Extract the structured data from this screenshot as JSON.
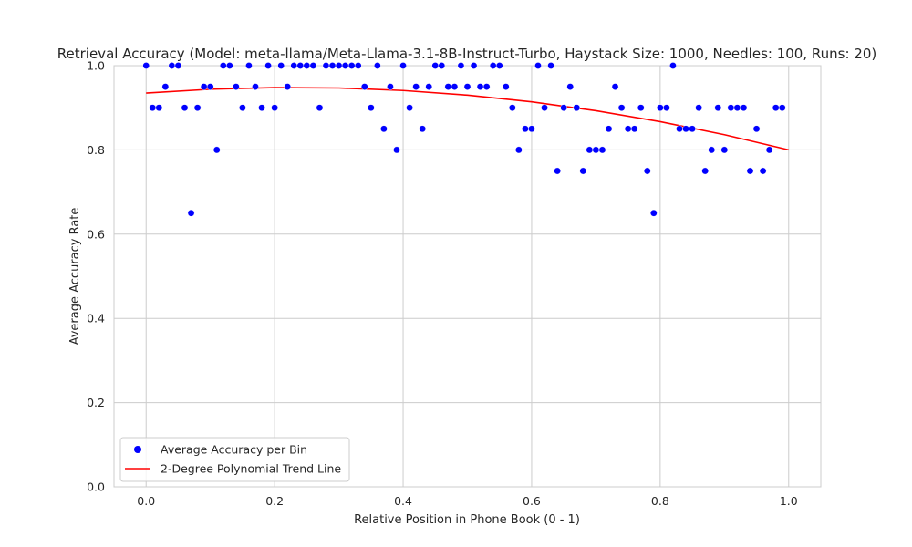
{
  "chart_data": {
    "type": "scatter",
    "title": "Retrieval Accuracy (Model: meta-llama/Meta-Llama-3.1-8B-Instruct-Turbo, Haystack Size: 1000, Needles: 100, Runs: 20)",
    "xlabel": "Relative Position in Phone Book (0 - 1)",
    "ylabel": "Average Accuracy Rate",
    "xlim": [
      -0.05,
      1.05
    ],
    "ylim": [
      0.0,
      1.0
    ],
    "xticks": [
      "0.0",
      "0.2",
      "0.4",
      "0.6",
      "0.8",
      "1.0"
    ],
    "yticks": [
      "0.0",
      "0.2",
      "0.4",
      "0.6",
      "0.8",
      "1.0"
    ],
    "grid": true,
    "legend_position": "lower-left",
    "series": [
      {
        "name": "Average Accuracy per Bin",
        "kind": "scatter",
        "color": "#0000ff",
        "x": [
          0.0,
          0.01,
          0.02,
          0.03,
          0.04,
          0.05,
          0.06,
          0.07,
          0.08,
          0.09,
          0.1,
          0.11,
          0.12,
          0.13,
          0.14,
          0.15,
          0.16,
          0.17,
          0.18,
          0.19,
          0.2,
          0.21,
          0.22,
          0.23,
          0.24,
          0.25,
          0.26,
          0.27,
          0.28,
          0.29,
          0.3,
          0.31,
          0.32,
          0.33,
          0.34,
          0.35,
          0.36,
          0.37,
          0.38,
          0.39,
          0.4,
          0.41,
          0.42,
          0.43,
          0.44,
          0.45,
          0.46,
          0.47,
          0.48,
          0.49,
          0.5,
          0.51,
          0.52,
          0.53,
          0.54,
          0.55,
          0.56,
          0.57,
          0.58,
          0.59,
          0.6,
          0.61,
          0.62,
          0.63,
          0.64,
          0.65,
          0.66,
          0.67,
          0.68,
          0.69,
          0.7,
          0.71,
          0.72,
          0.73,
          0.74,
          0.75,
          0.76,
          0.77,
          0.78,
          0.79,
          0.8,
          0.81,
          0.82,
          0.83,
          0.84,
          0.85,
          0.86,
          0.87,
          0.88,
          0.89,
          0.9,
          0.91,
          0.92,
          0.93,
          0.94,
          0.95,
          0.96,
          0.97,
          0.98,
          0.99
        ],
        "y": [
          1.0,
          0.9,
          0.9,
          0.95,
          1.0,
          1.0,
          0.9,
          0.65,
          0.9,
          0.95,
          0.95,
          0.8,
          1.0,
          1.0,
          0.95,
          0.9,
          1.0,
          0.95,
          0.9,
          1.0,
          0.9,
          1.0,
          0.95,
          1.0,
          1.0,
          1.0,
          1.0,
          0.9,
          1.0,
          1.0,
          1.0,
          1.0,
          1.0,
          1.0,
          0.95,
          0.9,
          1.0,
          0.85,
          0.95,
          0.8,
          1.0,
          0.9,
          0.95,
          0.85,
          0.95,
          1.0,
          1.0,
          0.95,
          0.95,
          1.0,
          0.95,
          1.0,
          0.95,
          0.95,
          1.0,
          1.0,
          0.95,
          0.9,
          0.8,
          0.85,
          0.85,
          1.0,
          0.9,
          1.0,
          0.75,
          0.9,
          0.95,
          0.9,
          0.75,
          0.8,
          0.8,
          0.8,
          0.85,
          0.95,
          0.9,
          0.85,
          0.85,
          0.9,
          0.75,
          0.65,
          0.9,
          0.9,
          1.0,
          0.85,
          0.85,
          0.85,
          0.9,
          0.75,
          0.8,
          0.9,
          0.8,
          0.9,
          0.9,
          0.9,
          0.75,
          0.85,
          0.75,
          0.8,
          0.9,
          0.9
        ]
      },
      {
        "name": "2-Degree Polynomial Trend Line",
        "kind": "line",
        "color": "#ff0000",
        "x": [
          0.0,
          0.1,
          0.2,
          0.3,
          0.4,
          0.5,
          0.6,
          0.7,
          0.8,
          0.9,
          1.0
        ],
        "y": [
          0.935,
          0.944,
          0.948,
          0.947,
          0.941,
          0.93,
          0.914,
          0.893,
          0.867,
          0.836,
          0.8
        ]
      }
    ]
  }
}
